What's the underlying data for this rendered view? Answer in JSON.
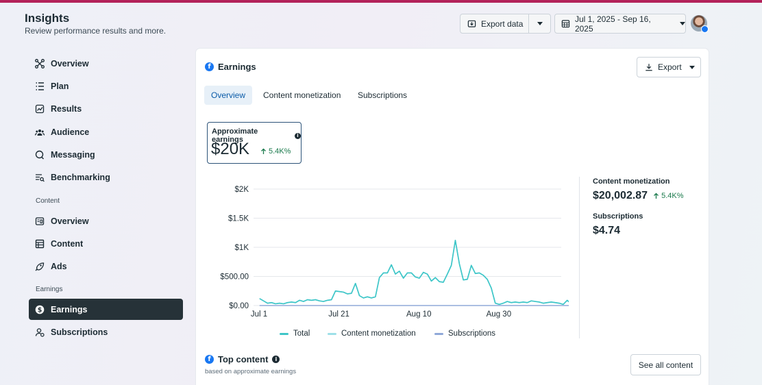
{
  "header": {
    "title": "Insights",
    "subtitle": "Review performance results and more.",
    "export_data_label": "Export data",
    "date_range": "Jul 1, 2025 - Sep 16, 2025"
  },
  "sidebar": {
    "items": [
      {
        "label": "Overview",
        "icon": "overview-icon"
      },
      {
        "label": "Plan",
        "icon": "plan-icon"
      },
      {
        "label": "Results",
        "icon": "results-icon"
      },
      {
        "label": "Audience",
        "icon": "audience-icon"
      },
      {
        "label": "Messaging",
        "icon": "messaging-icon"
      },
      {
        "label": "Benchmarking",
        "icon": "benchmarking-icon"
      }
    ],
    "section_content": "Content",
    "content_items": [
      {
        "label": "Overview",
        "icon": "content-overview-icon"
      },
      {
        "label": "Content",
        "icon": "content-table-icon"
      },
      {
        "label": "Ads",
        "icon": "ads-icon"
      }
    ],
    "section_earnings": "Earnings",
    "earnings_items": [
      {
        "label": "Earnings",
        "icon": "dollar-icon",
        "active": true
      },
      {
        "label": "Subscriptions",
        "icon": "subscriptions-icon"
      }
    ]
  },
  "card": {
    "title": "Earnings",
    "export_label": "Export",
    "tabs": [
      "Overview",
      "Content monetization",
      "Subscriptions"
    ],
    "active_tab": "Overview",
    "metric": {
      "label": "Approximate earnings",
      "value": "$20K",
      "delta": "5.4K%"
    },
    "side": {
      "content_monetization_label": "Content monetization",
      "content_monetization_value": "$20,002.87",
      "content_monetization_delta": "5.4K%",
      "subscriptions_label": "Subscriptions",
      "subscriptions_value": "$4.74"
    },
    "top_content": {
      "title": "Top content",
      "subtitle": "based on approximate earnings",
      "see_all_label": "See all content"
    }
  },
  "chart_data": {
    "type": "line",
    "y_tick_labels": [
      "$2K",
      "$1.5K",
      "$1K",
      "$500.00",
      "$0.00"
    ],
    "y_ticks": [
      2000,
      1500,
      1000,
      500,
      0
    ],
    "ylim": [
      0,
      2000
    ],
    "x_tick_labels": [
      "Jul 1",
      "Jul 21",
      "Aug 10",
      "Aug 30"
    ],
    "x_tick_days": [
      0,
      20,
      40,
      60
    ],
    "xlim": [
      0,
      77
    ],
    "colors": {
      "total": "#3ec6c8",
      "content_monetization": "#9ee0e8",
      "subscriptions": "#8fa8d8"
    },
    "series": [
      {
        "name": "Total",
        "values": [
          120,
          80,
          40,
          50,
          30,
          40,
          30,
          50,
          60,
          50,
          90,
          70,
          100,
          90,
          100,
          80,
          70,
          90,
          100,
          250,
          240,
          230,
          200,
          210,
          380,
          170,
          130,
          150,
          130,
          150,
          480,
          560,
          560,
          700,
          540,
          590,
          470,
          560,
          560,
          490,
          470,
          570,
          540,
          420,
          480,
          410,
          400,
          540,
          690,
          1120,
          720,
          440,
          450,
          690,
          550,
          560,
          520,
          450,
          300,
          40,
          20,
          40,
          70,
          50,
          60,
          50,
          60,
          50,
          80,
          70,
          60,
          40,
          50,
          60,
          50,
          40,
          20,
          90,
          30
        ]
      },
      {
        "name": "Content monetization",
        "values": [
          120,
          80,
          40,
          50,
          30,
          40,
          30,
          50,
          60,
          50,
          90,
          70,
          100,
          90,
          100,
          80,
          70,
          90,
          100,
          250,
          240,
          230,
          200,
          210,
          380,
          170,
          130,
          150,
          130,
          150,
          480,
          560,
          560,
          700,
          540,
          590,
          470,
          560,
          560,
          490,
          470,
          570,
          540,
          420,
          480,
          410,
          400,
          540,
          690,
          1120,
          720,
          440,
          450,
          690,
          550,
          560,
          520,
          450,
          300,
          40,
          20,
          40,
          70,
          50,
          60,
          50,
          60,
          50,
          80,
          70,
          60,
          40,
          50,
          60,
          50,
          40,
          20,
          90,
          30
        ]
      },
      {
        "name": "Subscriptions",
        "values": [
          0,
          0,
          0,
          0,
          0,
          0,
          0,
          0,
          0,
          0,
          0,
          0,
          0,
          0,
          0,
          0,
          0,
          0,
          0,
          0,
          0,
          0,
          0,
          0,
          0,
          0,
          0,
          0,
          0,
          0,
          0,
          0,
          0,
          0,
          0,
          0,
          0,
          0,
          0,
          0,
          0,
          0,
          0,
          0,
          0,
          0,
          0,
          0,
          0,
          0,
          0,
          0,
          0,
          0,
          0,
          0,
          0,
          0,
          0,
          0,
          0,
          0,
          0,
          0,
          0,
          0,
          0,
          0,
          0,
          0,
          0,
          0,
          0,
          0,
          0,
          0,
          0,
          0,
          0
        ]
      }
    ]
  }
}
